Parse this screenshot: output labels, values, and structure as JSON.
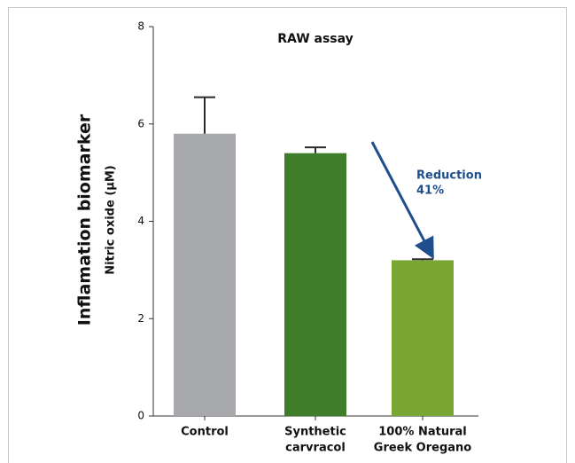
{
  "chart_data": {
    "type": "bar",
    "title": "RAW assay",
    "y_label": "Inflamation biomarker",
    "y_sublabel": "Nitric oxide (µM)",
    "categories": [
      [
        "Control"
      ],
      [
        "Synthetic",
        "carvracol"
      ],
      [
        "100% Natural",
        "Greek Oregano"
      ]
    ],
    "values": [
      5.8,
      5.4,
      3.2
    ],
    "errors": [
      0.75,
      0.12,
      0.02
    ],
    "colors": [
      "#a7a9ac",
      "#3f7d2a",
      "#7aa632"
    ],
    "ylim": [
      0,
      8
    ],
    "yticks": [
      0,
      2,
      4,
      6,
      8
    ],
    "annotation": {
      "lines": [
        "Reduction",
        "41%"
      ],
      "color": "#1f4e8c"
    }
  }
}
